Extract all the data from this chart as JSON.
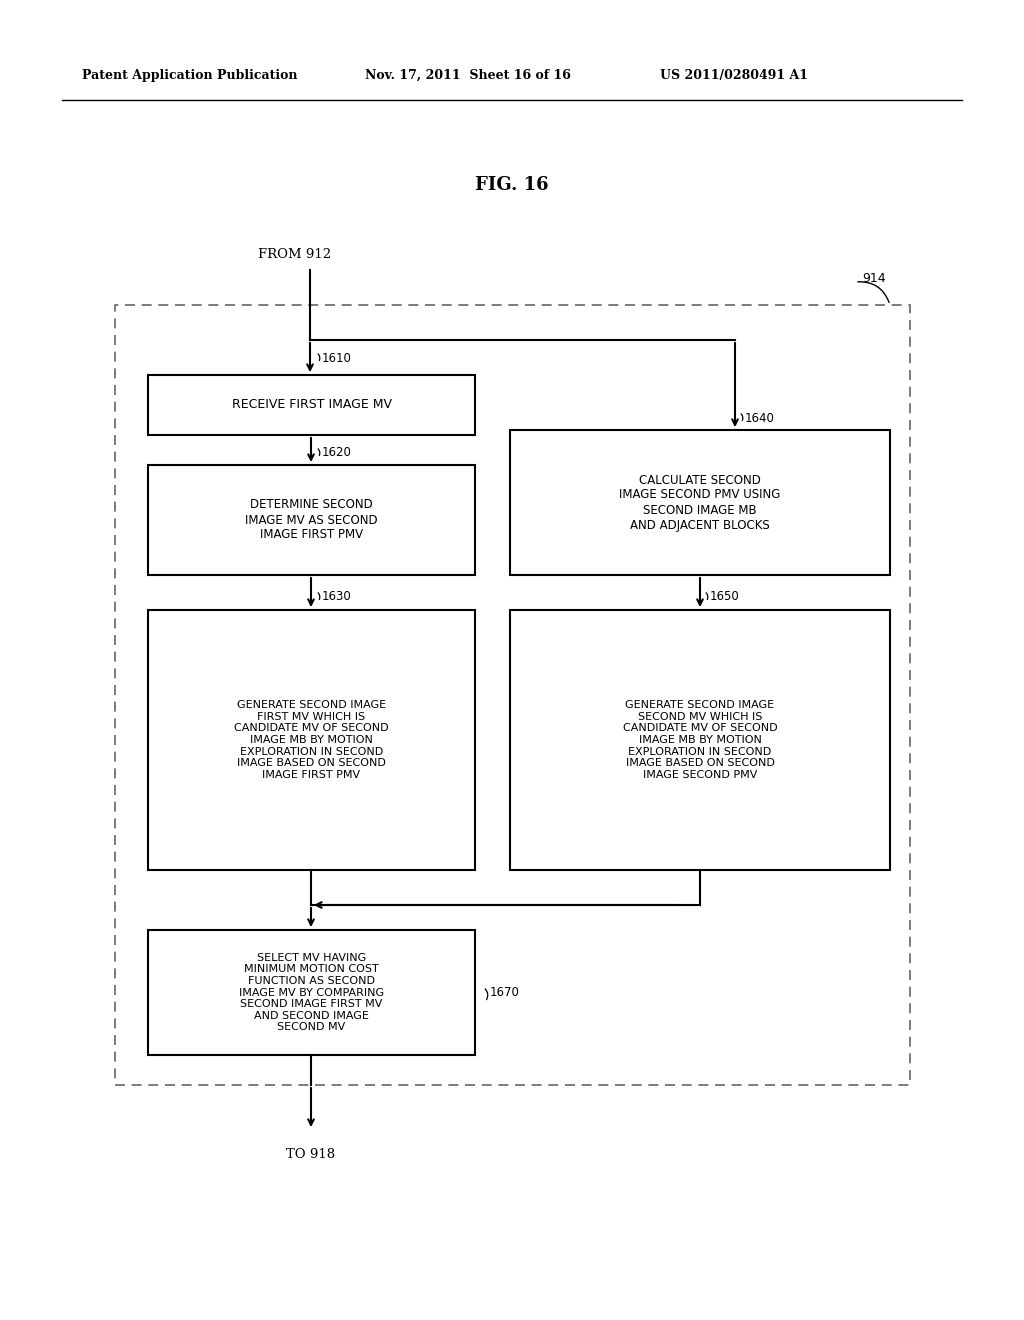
{
  "title": "FIG. 16",
  "header_left": "Patent Application Publication",
  "header_mid": "Nov. 17, 2011  Sheet 16 of 16",
  "header_right": "US 2011/0280491 A1",
  "from_label": "FROM 912",
  "to_label": "TO 918",
  "ref_914": "914",
  "ref_1610": "1610",
  "ref_1620": "1620",
  "ref_1630": "1630",
  "ref_1640": "1640",
  "ref_1650": "1650",
  "ref_1670": "1670",
  "box_1610_text": "RECEIVE FIRST IMAGE MV",
  "box_1620_text": "DETERMINE SECOND\nIMAGE MV AS SECOND\nIMAGE FIRST PMV",
  "box_1630_text": "GENERATE SECOND IMAGE\nFIRST MV WHICH IS\nCANDIDATE MV OF SECOND\nIMAGE MB BY MOTION\nEXPLORATION IN SECOND\nIMAGE BASED ON SECOND\nIMAGE FIRST PMV",
  "box_1640_text": "CALCULATE SECOND\nIMAGE SECOND PMV USING\nSECOND IMAGE MB\nAND ADJACENT BLOCKS",
  "box_1650_text": "GENERATE SECOND IMAGE\nSECOND MV WHICH IS\nCANDIDATE MV OF SECOND\nIMAGE MB BY MOTION\nEXPLORATION IN SECOND\nIMAGE BASED ON SECOND\nIMAGE SECOND PMV",
  "box_1670_text": "SELECT MV HAVING\nMINIMUM MOTION COST\nFUNCTION AS SECOND\nIMAGE MV BY COMPARING\nSECOND IMAGE FIRST MV\nAND SECOND IMAGE\nSECOND MV",
  "bg_color": "#ffffff",
  "box_color": "#ffffff",
  "box_edge_color": "#000000",
  "text_color": "#000000",
  "arrow_color": "#000000",
  "dashed_box_color": "#666666"
}
